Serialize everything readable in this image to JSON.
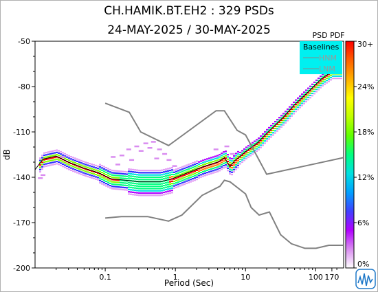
{
  "chart_data": {
    "type": "heatmap",
    "title": "CH.HAMIK.BT.EH2 : 329 PSDs",
    "subtitle": "24-MAY-2025 / 30-MAY-2025",
    "xlabel": "Period (Sec)",
    "ylabel": "dB",
    "x_scale": "log",
    "xlim": [
      0.01,
      250
    ],
    "ylim": [
      -200,
      -50
    ],
    "x_ticks": [
      {
        "value": 0.1,
        "label": "0.1"
      },
      {
        "value": 1,
        "label": "1"
      },
      {
        "value": 10,
        "label": "10"
      },
      {
        "value": 100,
        "label": "100"
      },
      {
        "value": 170,
        "label": "170"
      }
    ],
    "y_ticks": [
      {
        "value": -50,
        "label": "-50"
      },
      {
        "value": -80,
        "label": "-80"
      },
      {
        "value": -110,
        "label": "-110"
      },
      {
        "value": -140,
        "label": "-140"
      },
      {
        "value": -170,
        "label": "-170"
      },
      {
        "value": -200,
        "label": "-200"
      }
    ],
    "grid": false,
    "colorbar": {
      "title": "PSD PDF",
      "ticks": [
        "0%",
        "6%",
        "12%",
        "18%",
        "24%",
        "30+"
      ],
      "colors": [
        "#ffffff",
        "#d98cf0",
        "#b000ff",
        "#4040ff",
        "#00a0ff",
        "#00e0e0",
        "#00ff80",
        "#60ff00",
        "#c0ff00",
        "#ffff00",
        "#ffb000",
        "#ff6000",
        "#ff0000"
      ]
    },
    "legend": {
      "title": "Baselines",
      "placement": "top-right",
      "entries": [
        "HNM",
        "LNM"
      ]
    },
    "series": [
      {
        "name": "HNM",
        "points": [
          [
            0.1,
            -91
          ],
          [
            0.22,
            -97
          ],
          [
            0.32,
            -110
          ],
          [
            0.8,
            -119
          ],
          [
            3.8,
            -96
          ],
          [
            5,
            -96
          ],
          [
            7.6,
            -109
          ],
          [
            10,
            -112
          ],
          [
            20,
            -138
          ],
          [
            100,
            -131
          ],
          [
            250,
            -127
          ]
        ]
      },
      {
        "name": "LNM",
        "points": [
          [
            0.1,
            -167
          ],
          [
            0.17,
            -166
          ],
          [
            0.4,
            -166
          ],
          [
            0.8,
            -169
          ],
          [
            1.24,
            -165
          ],
          [
            2.4,
            -152
          ],
          [
            4.3,
            -146
          ],
          [
            5,
            -142
          ],
          [
            6,
            -143
          ],
          [
            10,
            -151
          ],
          [
            12,
            -160
          ],
          [
            15.6,
            -165
          ],
          [
            21.9,
            -163
          ],
          [
            31.6,
            -178
          ],
          [
            45,
            -184
          ],
          [
            70,
            -187
          ],
          [
            101,
            -187
          ],
          [
            154,
            -185
          ],
          [
            250,
            -185
          ]
        ]
      }
    ],
    "pdf_mode_curve": [
      [
        0.01,
        -135
      ],
      [
        0.013,
        -128
      ],
      [
        0.02,
        -126
      ],
      [
        0.03,
        -130
      ],
      [
        0.05,
        -134
      ],
      [
        0.08,
        -137
      ],
      [
        0.12,
        -141
      ],
      [
        0.2,
        -142
      ],
      [
        0.3,
        -143
      ],
      [
        0.45,
        -143
      ],
      [
        0.6,
        -143
      ],
      [
        0.9,
        -141
      ],
      [
        1.5,
        -137
      ],
      [
        2.5,
        -133
      ],
      [
        4,
        -130
      ],
      [
        5,
        -127
      ],
      [
        6,
        -133
      ],
      [
        7,
        -129
      ],
      [
        10,
        -123
      ],
      [
        15,
        -117
      ],
      [
        20,
        -111
      ],
      [
        35,
        -100
      ],
      [
        50,
        -92
      ],
      [
        80,
        -83
      ],
      [
        120,
        -75
      ],
      [
        170,
        -70
      ]
    ]
  }
}
